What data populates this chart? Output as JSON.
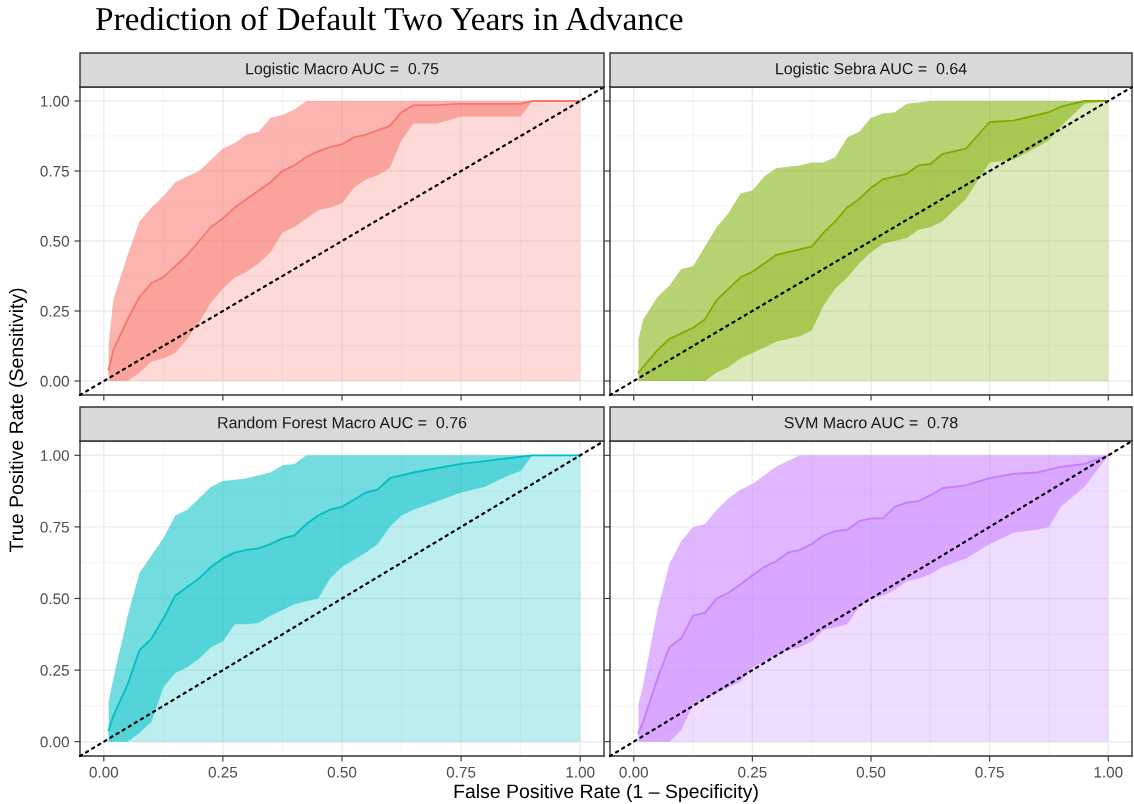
{
  "chart_data": [
    {
      "type": "area",
      "title": "Logistic Macro AUC =  0.75",
      "ylabel": "True Positive Rate (Sensitivity)",
      "annotations": [
        "Prediction of Default Two Years in Advance"
      ],
      "tick_labels": "y",
      "grid": true,
      "xlim": [
        -0.05,
        1.05
      ],
      "ylim": [
        -0.05,
        1.05
      ],
      "xticks": [
        0,
        0.25,
        0.5,
        0.75,
        1
      ],
      "yticks": [
        {
          "value": 0,
          "label": "0.00"
        },
        {
          "value": 0.25,
          "label": "0.25"
        },
        {
          "value": 0.5,
          "label": "0.50"
        },
        {
          "value": 0.75,
          "label": "0.75"
        },
        {
          "value": 1,
          "label": "1.00"
        }
      ],
      "series": [
        {
          "type": "line",
          "color": "#f8766d",
          "x": [
            0.01,
            0.02,
            0.05,
            0.075,
            0.1,
            0.125,
            0.15,
            0.175,
            0.2,
            0.225,
            0.25,
            0.275,
            0.3,
            0.325,
            0.35,
            0.375,
            0.4,
            0.425,
            0.45,
            0.475,
            0.5,
            0.525,
            0.55,
            0.575,
            0.6,
            0.625,
            0.65,
            0.7,
            0.75,
            0.8,
            0.85,
            0.875,
            0.9,
            0.95,
            1.0
          ],
          "values": [
            0.04,
            0.11,
            0.22,
            0.3,
            0.35,
            0.37,
            0.41,
            0.45,
            0.5,
            0.55,
            0.58,
            0.62,
            0.65,
            0.68,
            0.71,
            0.75,
            0.77,
            0.8,
            0.82,
            0.835,
            0.845,
            0.87,
            0.88,
            0.895,
            0.91,
            0.96,
            0.985,
            0.985,
            0.99,
            0.99,
            0.99,
            0.99,
            1.0,
            1.0,
            1.0
          ],
          "lower": [
            0.0,
            0.0,
            0.0,
            0.03,
            0.07,
            0.08,
            0.1,
            0.15,
            0.21,
            0.28,
            0.33,
            0.37,
            0.39,
            0.42,
            0.46,
            0.53,
            0.55,
            0.58,
            0.61,
            0.62,
            0.635,
            0.69,
            0.72,
            0.735,
            0.76,
            0.86,
            0.92,
            0.92,
            0.945,
            0.945,
            0.945,
            0.945,
            1.0,
            1.0,
            1.0
          ],
          "upper": [
            0.13,
            0.29,
            0.45,
            0.57,
            0.62,
            0.66,
            0.71,
            0.73,
            0.75,
            0.79,
            0.83,
            0.85,
            0.88,
            0.89,
            0.94,
            0.95,
            0.97,
            1.0,
            1.0,
            1.0,
            1.0,
            1.0,
            1.0,
            1.0,
            1.0,
            1.0,
            1.0,
            1.0,
            1.0,
            1.0,
            1.0,
            1.0,
            1.0,
            1.0,
            1.0
          ]
        },
        {
          "type": "line",
          "color": "#000000",
          "line_style": "dotted",
          "x": [
            -0.05,
            1.05
          ],
          "values": [
            -0.05,
            1.05
          ]
        }
      ]
    },
    {
      "type": "area",
      "title": "Logistic Sebra AUC =  0.64",
      "tick_labels": false,
      "grid": true,
      "xlim": [
        -0.05,
        1.05
      ],
      "ylim": [
        -0.05,
        1.05
      ],
      "xticks": [
        0,
        0.25,
        0.5,
        0.75,
        1
      ],
      "yticks": [
        0,
        0.25,
        0.5,
        0.75,
        1
      ],
      "series": [
        {
          "type": "line",
          "color": "#7cae00",
          "x": [
            0.01,
            0.02,
            0.05,
            0.075,
            0.1,
            0.125,
            0.15,
            0.175,
            0.2,
            0.225,
            0.25,
            0.275,
            0.3,
            0.325,
            0.35,
            0.375,
            0.4,
            0.425,
            0.45,
            0.475,
            0.5,
            0.525,
            0.55,
            0.575,
            0.6,
            0.625,
            0.65,
            0.7,
            0.75,
            0.8,
            0.85,
            0.875,
            0.9,
            0.95,
            1.0
          ],
          "values": [
            0.03,
            0.05,
            0.11,
            0.15,
            0.17,
            0.19,
            0.22,
            0.29,
            0.33,
            0.37,
            0.39,
            0.42,
            0.45,
            0.46,
            0.47,
            0.48,
            0.53,
            0.57,
            0.62,
            0.65,
            0.69,
            0.72,
            0.73,
            0.74,
            0.77,
            0.775,
            0.81,
            0.83,
            0.925,
            0.93,
            0.95,
            0.96,
            0.98,
            1.0,
            1.0
          ],
          "lower": [
            0.0,
            0.0,
            0.0,
            0.0,
            0.0,
            0.0,
            0.0,
            0.03,
            0.05,
            0.08,
            0.1,
            0.12,
            0.14,
            0.15,
            0.16,
            0.18,
            0.27,
            0.33,
            0.37,
            0.42,
            0.46,
            0.49,
            0.5,
            0.51,
            0.54,
            0.55,
            0.57,
            0.65,
            0.78,
            0.79,
            0.835,
            0.86,
            0.91,
            0.99,
            1.0
          ],
          "upper": [
            0.15,
            0.22,
            0.3,
            0.34,
            0.4,
            0.41,
            0.48,
            0.55,
            0.6,
            0.67,
            0.68,
            0.73,
            0.76,
            0.765,
            0.77,
            0.78,
            0.78,
            0.8,
            0.87,
            0.89,
            0.94,
            0.955,
            0.96,
            0.99,
            0.995,
            1.0,
            1.0,
            1.0,
            1.0,
            1.0,
            1.0,
            1.0,
            1.0,
            1.0,
            1.0
          ]
        },
        {
          "type": "line",
          "color": "#000000",
          "line_style": "dotted",
          "x": [
            -0.05,
            1.05
          ],
          "values": [
            -0.05,
            1.05
          ]
        }
      ]
    },
    {
      "type": "area",
      "title": "Random Forest Macro AUC =  0.76",
      "xlabel": "False Positive Rate (1 – Specificity)",
      "grid": true,
      "xlim": [
        -0.05,
        1.05
      ],
      "ylim": [
        -0.05,
        1.05
      ],
      "xticks": [
        {
          "value": 0,
          "label": "0.00"
        },
        {
          "value": 0.25,
          "label": "0.25"
        },
        {
          "value": 0.5,
          "label": "0.50"
        },
        {
          "value": 0.75,
          "label": "0.75"
        },
        {
          "value": 1,
          "label": "1.00"
        }
      ],
      "yticks": [
        {
          "value": 0,
          "label": "0.00"
        },
        {
          "value": 0.25,
          "label": "0.25"
        },
        {
          "value": 0.5,
          "label": "0.50"
        },
        {
          "value": 0.75,
          "label": "0.75"
        },
        {
          "value": 1,
          "label": "1.00"
        }
      ],
      "series": [
        {
          "type": "line",
          "color": "#00bfc4",
          "x": [
            0.01,
            0.02,
            0.05,
            0.075,
            0.1,
            0.125,
            0.15,
            0.175,
            0.2,
            0.225,
            0.25,
            0.275,
            0.3,
            0.325,
            0.35,
            0.375,
            0.4,
            0.425,
            0.45,
            0.475,
            0.5,
            0.525,
            0.55,
            0.575,
            0.6,
            0.625,
            0.65,
            0.7,
            0.75,
            0.8,
            0.85,
            0.875,
            0.9,
            0.95,
            1.0
          ],
          "values": [
            0.04,
            0.09,
            0.2,
            0.32,
            0.36,
            0.43,
            0.51,
            0.54,
            0.57,
            0.61,
            0.64,
            0.66,
            0.67,
            0.675,
            0.69,
            0.71,
            0.72,
            0.76,
            0.79,
            0.81,
            0.82,
            0.845,
            0.87,
            0.88,
            0.92,
            0.93,
            0.94,
            0.955,
            0.97,
            0.98,
            0.99,
            0.995,
            1.0,
            1.0,
            1.0
          ],
          "lower": [
            0.0,
            0.0,
            0.0,
            0.03,
            0.07,
            0.19,
            0.24,
            0.26,
            0.29,
            0.33,
            0.35,
            0.41,
            0.41,
            0.415,
            0.44,
            0.46,
            0.48,
            0.49,
            0.5,
            0.57,
            0.61,
            0.635,
            0.66,
            0.69,
            0.75,
            0.79,
            0.81,
            0.84,
            0.87,
            0.89,
            0.93,
            0.945,
            1.0,
            1.0,
            1.0
          ],
          "upper": [
            0.14,
            0.22,
            0.44,
            0.59,
            0.65,
            0.71,
            0.79,
            0.81,
            0.85,
            0.89,
            0.91,
            0.915,
            0.92,
            0.93,
            0.94,
            0.965,
            0.97,
            1.0,
            1.0,
            1.0,
            1.0,
            1.0,
            1.0,
            1.0,
            1.0,
            1.0,
            1.0,
            1.0,
            1.0,
            1.0,
            1.0,
            1.0,
            1.0,
            1.0,
            1.0
          ]
        },
        {
          "type": "line",
          "color": "#000000",
          "line_style": "dotted",
          "x": [
            -0.05,
            1.05
          ],
          "values": [
            -0.05,
            1.05
          ]
        }
      ]
    },
    {
      "type": "area",
      "title": "SVM Macro AUC =  0.78",
      "tick_labels": "x",
      "grid": true,
      "xlim": [
        -0.05,
        1.05
      ],
      "ylim": [
        -0.05,
        1.05
      ],
      "xticks": [
        {
          "value": 0,
          "label": "0.00"
        },
        {
          "value": 0.25,
          "label": "0.25"
        },
        {
          "value": 0.5,
          "label": "0.50"
        },
        {
          "value": 0.75,
          "label": "0.75"
        },
        {
          "value": 1,
          "label": "1.00"
        }
      ],
      "yticks": [
        0,
        0.25,
        0.5,
        0.75,
        1
      ],
      "series": [
        {
          "type": "line",
          "color": "#c77cff",
          "x": [
            0.01,
            0.02,
            0.05,
            0.075,
            0.1,
            0.125,
            0.15,
            0.175,
            0.2,
            0.225,
            0.25,
            0.275,
            0.3,
            0.325,
            0.35,
            0.375,
            0.4,
            0.425,
            0.45,
            0.475,
            0.5,
            0.525,
            0.55,
            0.575,
            0.6,
            0.625,
            0.65,
            0.7,
            0.75,
            0.8,
            0.85,
            0.875,
            0.9,
            0.95,
            1.0
          ],
          "values": [
            0.03,
            0.07,
            0.22,
            0.33,
            0.36,
            0.44,
            0.45,
            0.5,
            0.52,
            0.55,
            0.58,
            0.61,
            0.63,
            0.66,
            0.67,
            0.69,
            0.72,
            0.735,
            0.74,
            0.77,
            0.78,
            0.78,
            0.82,
            0.835,
            0.84,
            0.86,
            0.885,
            0.895,
            0.92,
            0.935,
            0.94,
            0.95,
            0.96,
            0.97,
            1.0
          ],
          "lower": [
            0.0,
            0.0,
            0.0,
            0.0,
            0.04,
            0.13,
            0.15,
            0.17,
            0.19,
            0.21,
            0.26,
            0.28,
            0.3,
            0.32,
            0.33,
            0.35,
            0.39,
            0.4,
            0.41,
            0.47,
            0.5,
            0.51,
            0.53,
            0.56,
            0.57,
            0.585,
            0.61,
            0.64,
            0.69,
            0.73,
            0.74,
            0.75,
            0.82,
            0.89,
            1.0
          ],
          "upper": [
            0.13,
            0.2,
            0.46,
            0.62,
            0.7,
            0.75,
            0.76,
            0.81,
            0.85,
            0.88,
            0.9,
            0.93,
            0.96,
            0.98,
            1.0,
            1.0,
            1.0,
            1.0,
            1.0,
            1.0,
            1.0,
            1.0,
            1.0,
            1.0,
            1.0,
            1.0,
            1.0,
            1.0,
            1.0,
            1.0,
            1.0,
            1.0,
            1.0,
            1.0,
            1.0
          ]
        },
        {
          "type": "line",
          "color": "#000000",
          "line_style": "dotted",
          "x": [
            -0.05,
            1.05
          ],
          "values": [
            -0.05,
            1.05
          ]
        }
      ]
    }
  ]
}
